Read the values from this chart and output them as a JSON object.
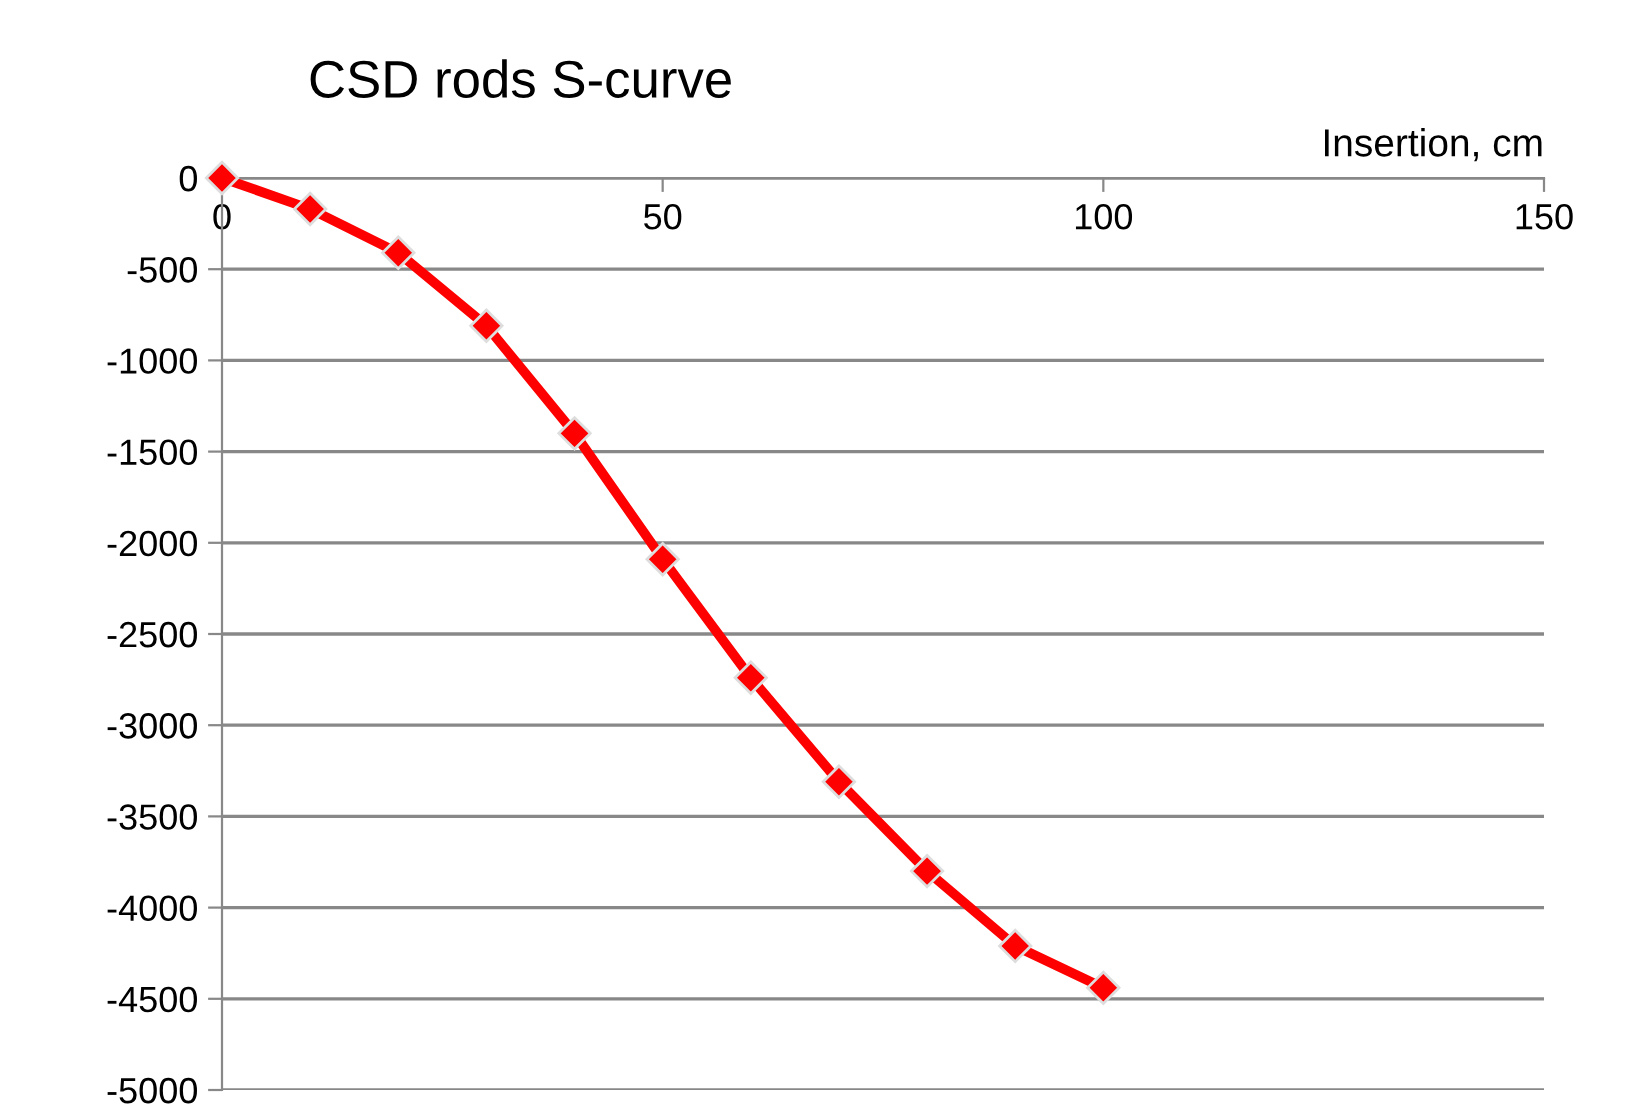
{
  "chart_data": {
    "type": "line",
    "title": "CSD rods S-curve",
    "xlabel": "Insertion, cm",
    "x": [
      0,
      10,
      20,
      30,
      40,
      50,
      60,
      70,
      80,
      90,
      100
    ],
    "series": [
      {
        "color": "#ff0000",
        "values": [
          0,
          -170,
          -410,
          -810,
          -1400,
          -2090,
          -2740,
          -3310,
          -3800,
          -4210,
          -4440
        ]
      }
    ],
    "xlim": [
      0,
      150
    ],
    "xticks": [
      0,
      50,
      100,
      150
    ],
    "ylim": [
      -5000,
      0
    ],
    "yticks": [
      0,
      -500,
      -1000,
      -1500,
      -2000,
      -2500,
      -3000,
      -3500,
      -4000,
      -4500,
      -5000
    ],
    "grid": "y",
    "marker": "diamond",
    "line_style": "solid"
  }
}
